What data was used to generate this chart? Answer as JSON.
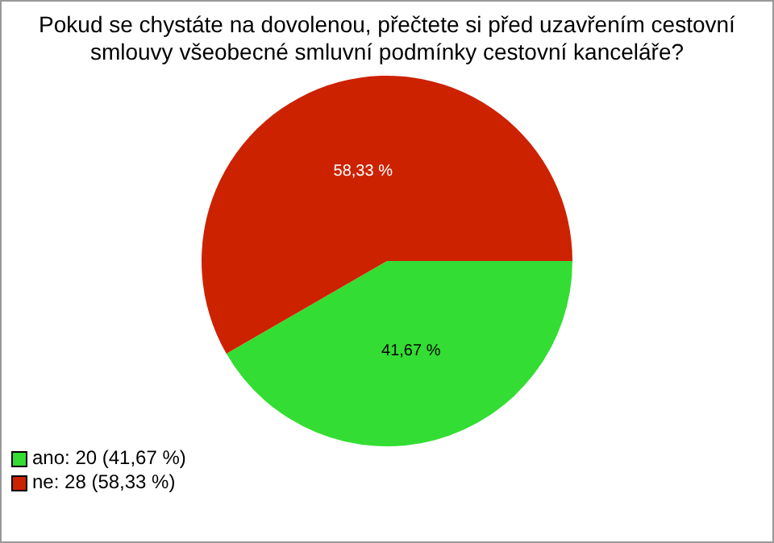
{
  "chart_data": {
    "type": "pie",
    "title": "Pokud se chystáte na dovolenou, přečtete si před uzavřením cestovní smlouvy všeobecné smluvní podmínky cestovní kanceláře?",
    "categories": [
      "ano: 20 (41,67 %)",
      "ne: 28 (58,33 %)"
    ],
    "values": [
      41.67,
      58.33
    ],
    "colors": [
      "#33dd33",
      "#cc2200"
    ],
    "value_labels": [
      "41,67 %",
      "58,33 %"
    ],
    "legend": "bottom left"
  }
}
